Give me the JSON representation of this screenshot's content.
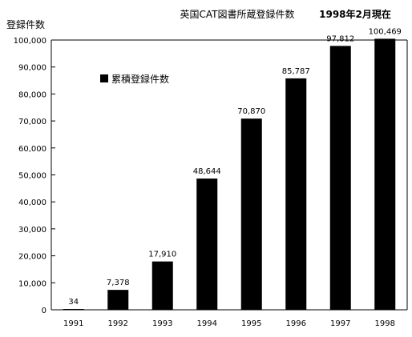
{
  "chart_data": {
    "type": "bar",
    "title": "英国CAT図書所蔵登録件数",
    "subtitle": "1998年2月現在",
    "ylabel": "登録件数",
    "xlabel": "",
    "categories": [
      "1991",
      "1992",
      "1993",
      "1994",
      "1995",
      "1996",
      "1997",
      "1998"
    ],
    "series": [
      {
        "name": "累積登録件数",
        "values": [
          34,
          7378,
          17910,
          48644,
          70870,
          85787,
          97812,
          100469
        ],
        "labels": [
          "34",
          "7,378",
          "17,910",
          "48,644",
          "70,870",
          "85,787",
          "97,812",
          "100,469"
        ],
        "color": "#000000"
      }
    ],
    "ylim": [
      0,
      100000
    ],
    "yticks": [
      0,
      10000,
      20000,
      30000,
      40000,
      50000,
      60000,
      70000,
      80000,
      90000,
      100000
    ],
    "ytick_labels": [
      "0",
      "10,000",
      "20,000",
      "30,000",
      "40,000",
      "50,000",
      "60,000",
      "70,000",
      "80,000",
      "90,000",
      "100,000"
    ],
    "grid": false,
    "legend": "top-left"
  }
}
